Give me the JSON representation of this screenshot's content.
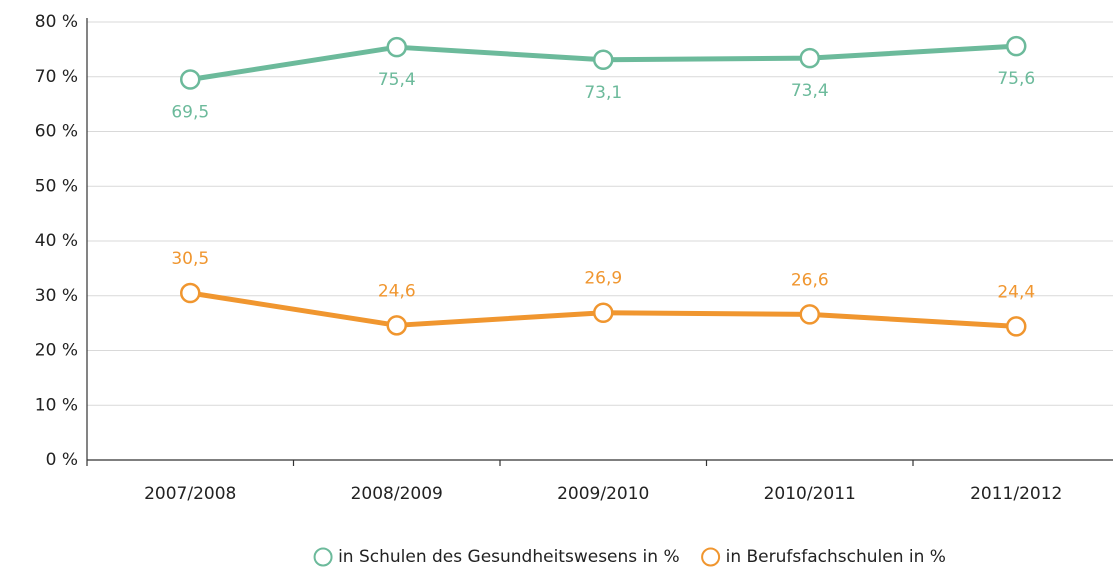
{
  "chart_data": {
    "type": "line",
    "categories": [
      "2007/2008",
      "2008/2009",
      "2009/2010",
      "2010/2011",
      "2011/2012"
    ],
    "series": [
      {
        "name": "in Schulen des Gesundheitswesens in %",
        "color": "#6cba9b",
        "values": [
          69.5,
          75.4,
          73.1,
          73.4,
          75.6
        ],
        "value_labels": [
          "69,5",
          "75,4",
          "73,1",
          "73,4",
          "75,6"
        ],
        "label_position": "below"
      },
      {
        "name": "in Berufsfachschulen in %",
        "color": "#f0962f",
        "values": [
          30.5,
          24.6,
          26.9,
          26.6,
          24.4
        ],
        "value_labels": [
          "30,5",
          "24,6",
          "26,9",
          "26,6",
          "24,4"
        ],
        "label_position": "above"
      }
    ],
    "ylim": [
      0,
      80
    ],
    "yticks": [
      {
        "value": 0,
        "label": "0 %"
      },
      {
        "value": 10,
        "label": "10 %"
      },
      {
        "value": 20,
        "label": "20 %"
      },
      {
        "value": 30,
        "label": "30 %"
      },
      {
        "value": 40,
        "label": "40 %"
      },
      {
        "value": 50,
        "label": "50 %"
      },
      {
        "value": 60,
        "label": "60 %"
      },
      {
        "value": 70,
        "label": "70 %"
      },
      {
        "value": 80,
        "label": "80 %"
      }
    ],
    "grid": true,
    "legend": "bottom"
  }
}
